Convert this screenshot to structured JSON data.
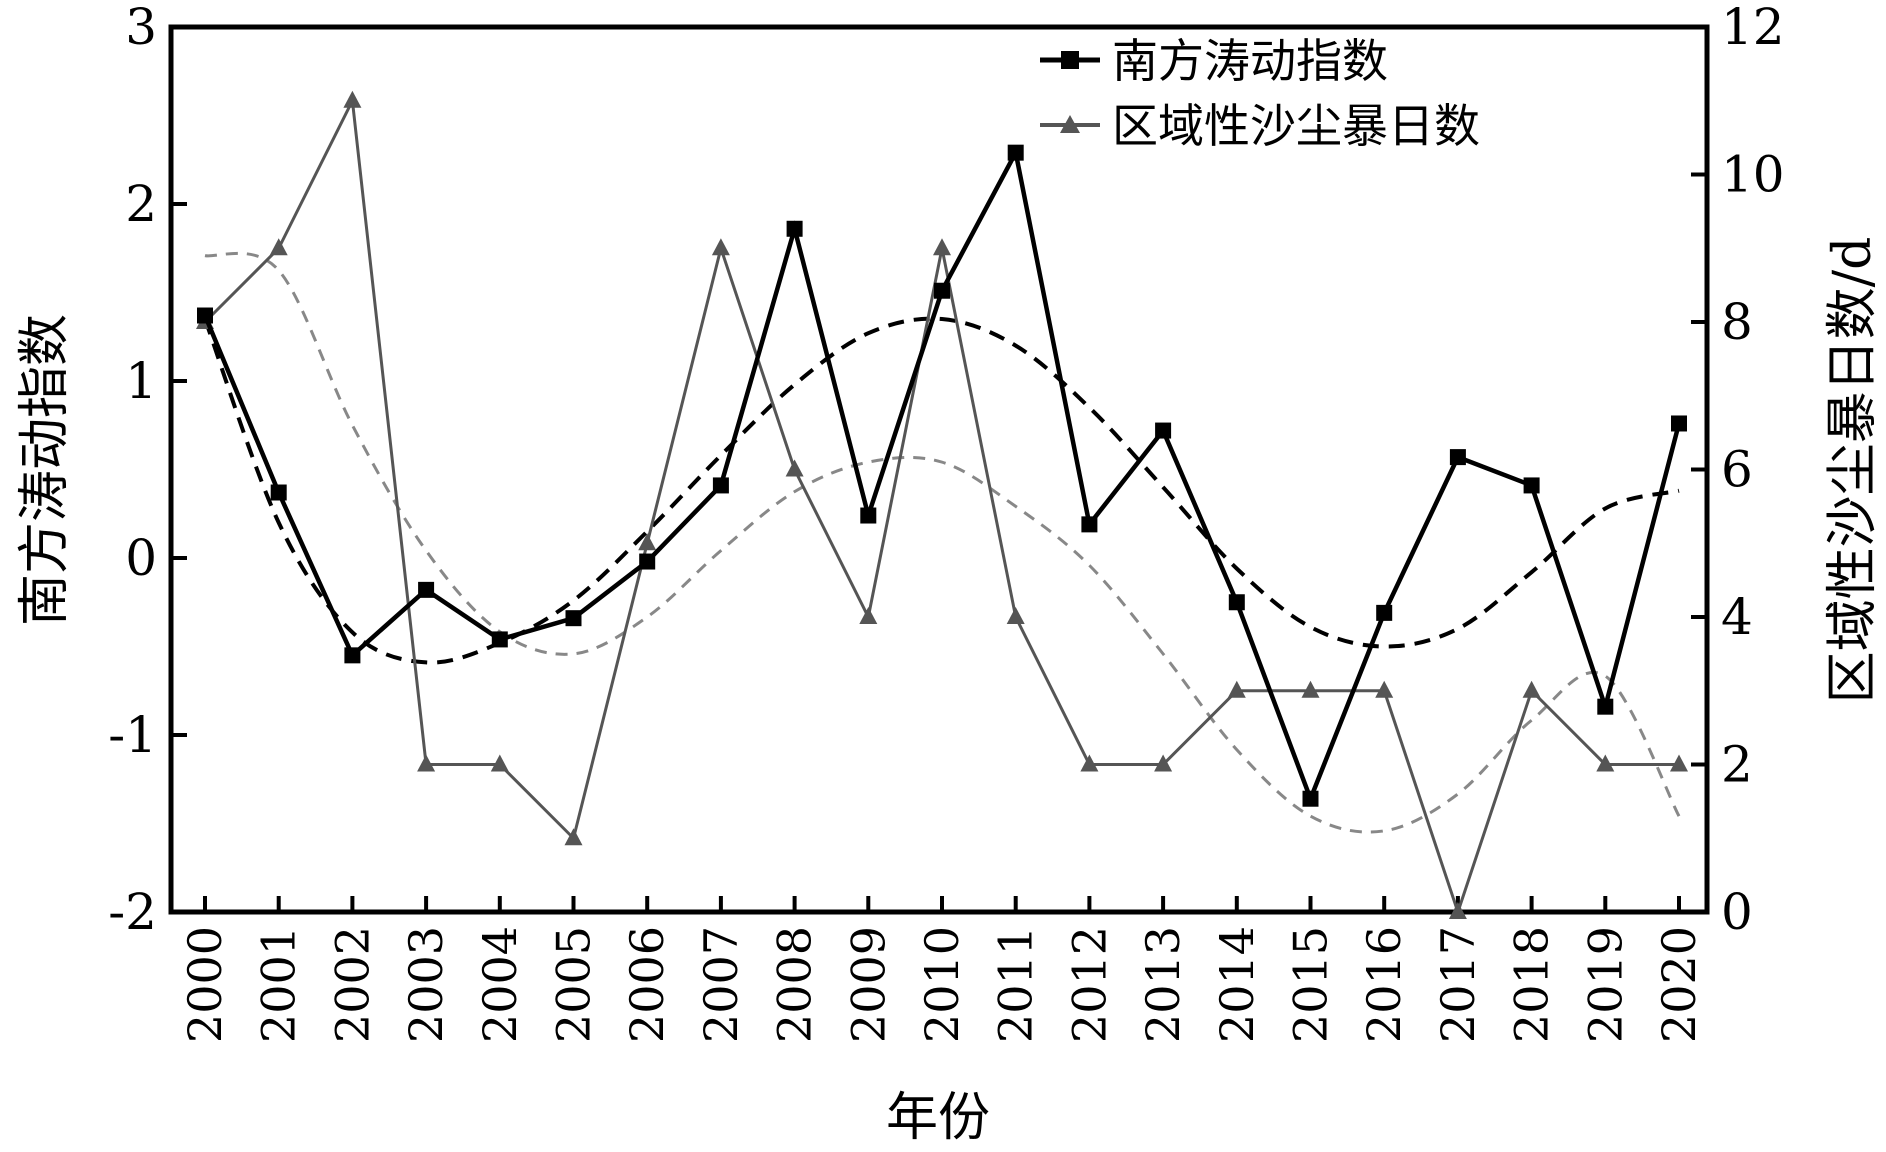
{
  "chart_data": {
    "type": "line",
    "xlabel": "年份",
    "ylabel_left": "南方涛动指数",
    "ylabel_right": "区域性沙尘暴日数/d",
    "categories": [
      "2000",
      "2001",
      "2002",
      "2003",
      "2004",
      "2005",
      "2006",
      "2007",
      "2008",
      "2009",
      "2010",
      "2011",
      "2012",
      "2013",
      "2014",
      "2015",
      "2016",
      "2017",
      "2018",
      "2019",
      "2020"
    ],
    "y_left": {
      "range": [
        -2,
        3
      ],
      "ticks": [
        -2,
        -1,
        0,
        1,
        2,
        3
      ]
    },
    "y_right": {
      "range": [
        0,
        12
      ],
      "ticks": [
        0,
        2,
        4,
        6,
        8,
        10,
        12
      ]
    },
    "grid": false,
    "legend_position": "top-right",
    "series": [
      {
        "name": "南方涛动指数",
        "axis": "left",
        "marker": "square",
        "color": "#000000",
        "values": [
          1.37,
          0.37,
          -0.55,
          -0.18,
          -0.46,
          -0.34,
          -0.02,
          0.41,
          1.86,
          0.24,
          1.51,
          2.29,
          0.19,
          0.72,
          -0.25,
          -1.36,
          -0.31,
          0.57,
          0.41,
          -0.84,
          0.76
        ]
      },
      {
        "name": "区域性沙尘暴日数",
        "axis": "right",
        "marker": "triangle",
        "color": "#555555",
        "values": [
          8,
          9,
          11,
          2,
          2,
          1,
          5,
          9,
          6,
          4,
          9,
          4,
          2,
          2,
          3,
          3,
          3,
          0,
          3,
          2,
          2
        ]
      }
    ],
    "trend_lines": [
      {
        "axis": "left",
        "style": "dashed",
        "color": "#000000",
        "values": [
          1.35,
          0.2,
          -0.42,
          -0.59,
          -0.48,
          -0.24,
          0.15,
          0.58,
          0.98,
          1.27,
          1.35,
          1.2,
          0.85,
          0.4,
          -0.06,
          -0.39,
          -0.5,
          -0.4,
          -0.08,
          0.28,
          0.38
        ]
      },
      {
        "axis": "right",
        "style": "dashed",
        "color": "#888888",
        "values": [
          8.9,
          8.7,
          6.6,
          4.9,
          3.8,
          3.5,
          4.0,
          4.9,
          5.7,
          6.1,
          6.1,
          5.5,
          4.7,
          3.5,
          2.2,
          1.3,
          1.1,
          1.6,
          2.6,
          3.2,
          1.3
        ]
      }
    ]
  }
}
